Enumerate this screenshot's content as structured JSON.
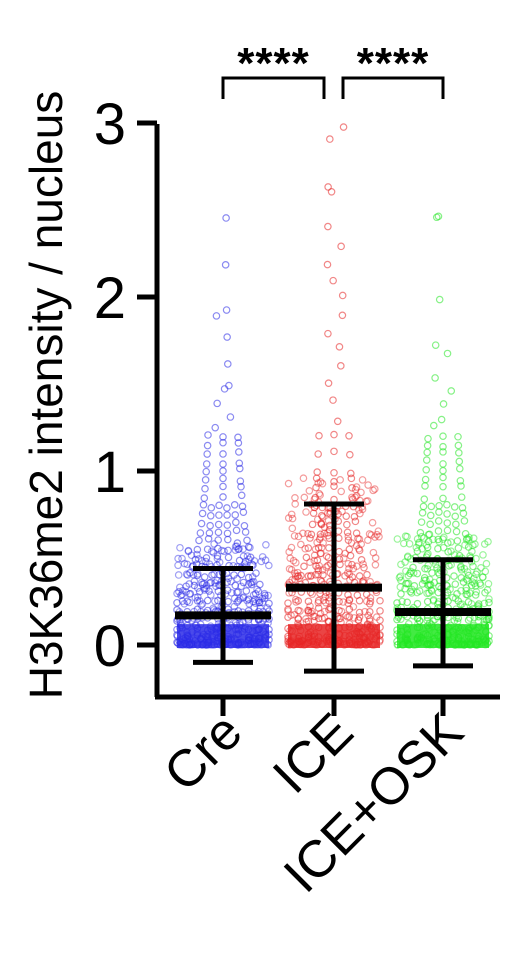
{
  "chart_data": {
    "type": "scatter",
    "ylabel": "H3K36me2 intensity / nucleus",
    "xlabel": "",
    "ylim": [
      0,
      3
    ],
    "yticks": [
      0,
      1,
      2,
      3
    ],
    "categories": [
      "Cre",
      "ICE",
      "ICE+OSK"
    ],
    "series": [
      {
        "category": "Cre",
        "color": "#2a2ae6",
        "mean": 0.17,
        "sd_low": -0.1,
        "sd_high": 0.44,
        "max": 2.46,
        "sample_values": [
          2.46,
          2.17,
          1.92,
          1.88,
          1.76,
          1.62,
          1.5,
          1.48,
          1.38,
          1.3,
          1.25,
          1.2,
          1.15,
          1.1,
          1.05,
          1.0,
          0.95,
          0.9,
          0.85,
          0.8,
          0.75,
          0.7,
          0.65,
          0.6,
          0.55,
          0.5,
          0.45,
          0.4,
          0.35,
          0.3,
          0.25,
          0.2,
          0.15,
          0.1,
          0.05,
          0.02
        ]
      },
      {
        "category": "ICE",
        "color": "#e62424",
        "mean": 0.33,
        "sd_low": -0.15,
        "sd_high": 0.81,
        "max": 2.98,
        "sample_values": [
          2.98,
          2.9,
          2.63,
          2.6,
          2.4,
          2.3,
          2.2,
          2.1,
          2.0,
          1.9,
          1.8,
          1.7,
          1.6,
          1.5,
          1.4,
          1.3,
          1.2,
          1.1,
          1.0,
          0.95,
          0.9,
          0.85,
          0.8,
          0.75,
          0.7,
          0.65,
          0.6,
          0.55,
          0.5,
          0.45,
          0.4,
          0.35,
          0.3,
          0.25,
          0.2,
          0.15,
          0.1,
          0.05,
          0.02
        ]
      },
      {
        "category": "ICE+OSK",
        "color": "#22e622",
        "mean": 0.19,
        "sd_low": -0.12,
        "sd_high": 0.49,
        "max": 2.47,
        "sample_values": [
          2.47,
          2.45,
          2.0,
          1.72,
          1.68,
          1.55,
          1.45,
          1.4,
          1.3,
          1.25,
          1.2,
          1.15,
          1.1,
          1.05,
          1.0,
          0.95,
          0.9,
          0.85,
          0.8,
          0.75,
          0.7,
          0.65,
          0.6,
          0.55,
          0.5,
          0.45,
          0.4,
          0.35,
          0.3,
          0.25,
          0.2,
          0.15,
          0.1,
          0.05,
          0.02
        ]
      }
    ],
    "significance": [
      {
        "groups": [
          "Cre",
          "ICE"
        ],
        "label": "****"
      },
      {
        "groups": [
          "ICE",
          "ICE+OSK"
        ],
        "label": "****"
      }
    ],
    "legend": "none",
    "grid": false
  }
}
